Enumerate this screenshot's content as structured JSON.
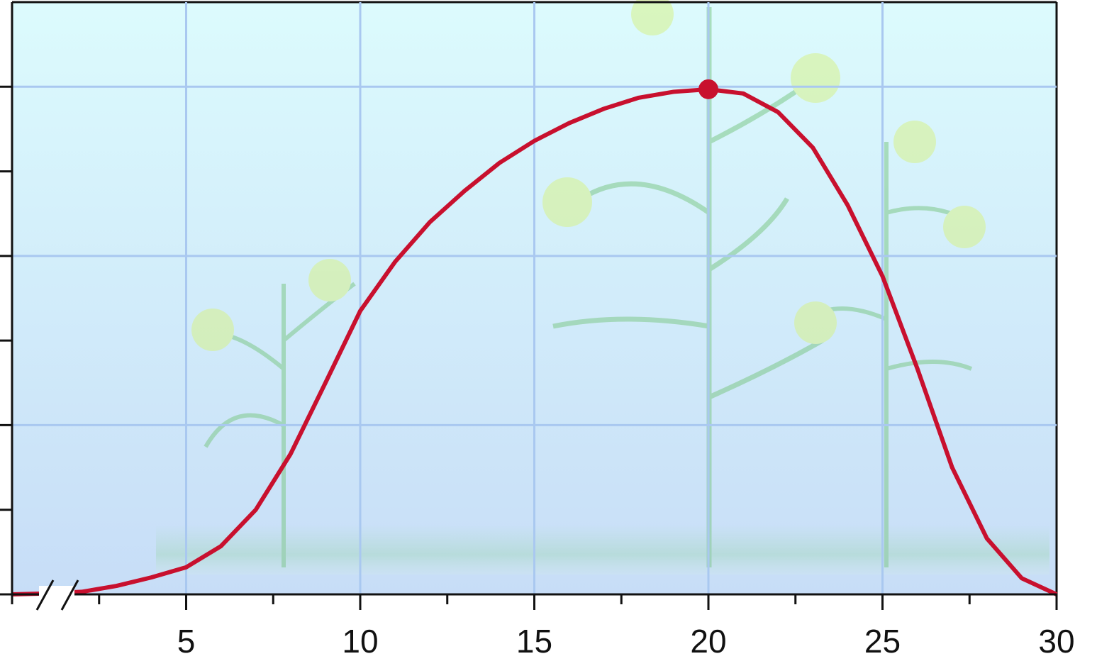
{
  "chart_data": {
    "type": "line",
    "x": [
      0,
      1,
      2,
      3,
      4,
      5,
      6,
      7,
      8,
      9,
      10,
      11,
      12,
      13,
      14,
      15,
      16,
      17,
      18,
      19,
      20,
      21,
      22,
      23,
      24,
      25,
      26,
      27,
      28,
      29,
      30
    ],
    "series": [
      {
        "color": "#c8102e",
        "values": [
          0,
          0.01,
          0.03,
          0.1,
          0.2,
          0.32,
          0.57,
          1.0,
          1.66,
          2.5,
          3.35,
          3.93,
          4.4,
          4.77,
          5.1,
          5.36,
          5.57,
          5.74,
          5.87,
          5.94,
          5.97,
          5.92,
          5.7,
          5.28,
          4.6,
          3.76,
          2.67,
          1.5,
          0.66,
          0.19,
          0
        ]
      }
    ],
    "highlight_index": 20,
    "xlim": [
      0,
      30
    ],
    "xticks": [
      5,
      10,
      15,
      20,
      25,
      30
    ],
    "xminorticks": [
      0,
      2.5,
      7.5,
      12.5,
      17.5,
      22.5,
      27.5
    ],
    "xgrid": [
      5,
      10,
      15,
      20,
      25
    ],
    "ylim": [
      0,
      7
    ],
    "yticks": [
      0,
      1,
      2,
      3,
      4,
      5,
      6
    ],
    "ygrid": [
      2,
      4,
      6
    ],
    "grid_color": "#a9c8f0"
  }
}
